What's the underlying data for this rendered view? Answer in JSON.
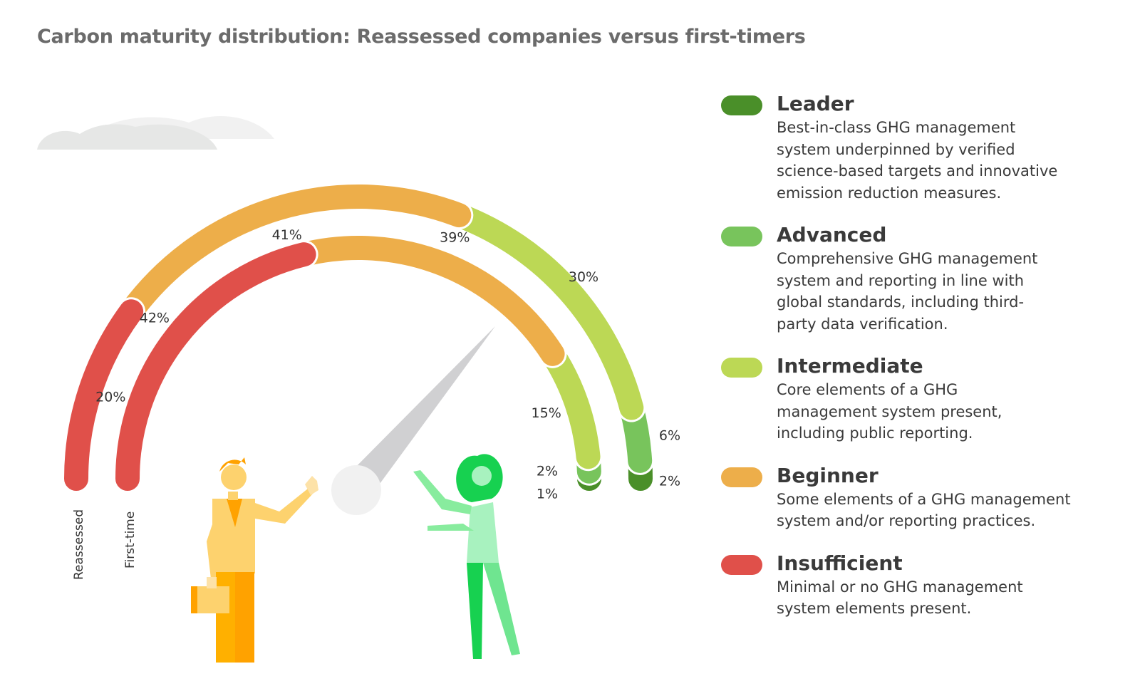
{
  "title": "Carbon maturity distribution: Reassessed companies versus first-timers",
  "legend": [
    {
      "name": "Leader",
      "color": "#4a8f29",
      "description": "Best-in-class GHG management\nsystem underpinned by verified\nscience-based targets and innovative\nemission reduction measures."
    },
    {
      "name": "Advanced",
      "color": "#78c45c",
      "description": "Comprehensive GHG management\nsystem and reporting in line with\nglobal standards, including third-\nparty data verification."
    },
    {
      "name": "Intermediate",
      "color": "#bcd855",
      "description": "Core elements of a GHG\nmanagement system present,\nincluding public reporting."
    },
    {
      "name": "Beginner",
      "color": "#edae4a",
      "description": "Some elements of a GHG management\nsystem and/or reporting practices."
    },
    {
      "name": "Insufficient",
      "color": "#e0504a",
      "description": "Minimal or no GHG management\nsystem elements present."
    }
  ],
  "chart_data": {
    "type": "gauge-donut",
    "title": "Carbon maturity distribution: Reassessed companies versus first-timers",
    "categories": [
      "Insufficient",
      "Beginner",
      "Intermediate",
      "Advanced",
      "Leader"
    ],
    "colors": [
      "#e0504a",
      "#edae4a",
      "#bcd855",
      "#78c45c",
      "#4a8f29"
    ],
    "series": [
      {
        "name": "Reassessed",
        "values": [
          20,
          41,
          30,
          6,
          2
        ],
        "labels": [
          "20%",
          "41%",
          "30%",
          "6%",
          "2%"
        ]
      },
      {
        "name": "First-time",
        "values": [
          42,
          39,
          15,
          2,
          1
        ],
        "labels": [
          "42%",
          "39%",
          "15%",
          "2%",
          "1%"
        ]
      }
    ],
    "unit": "%"
  }
}
